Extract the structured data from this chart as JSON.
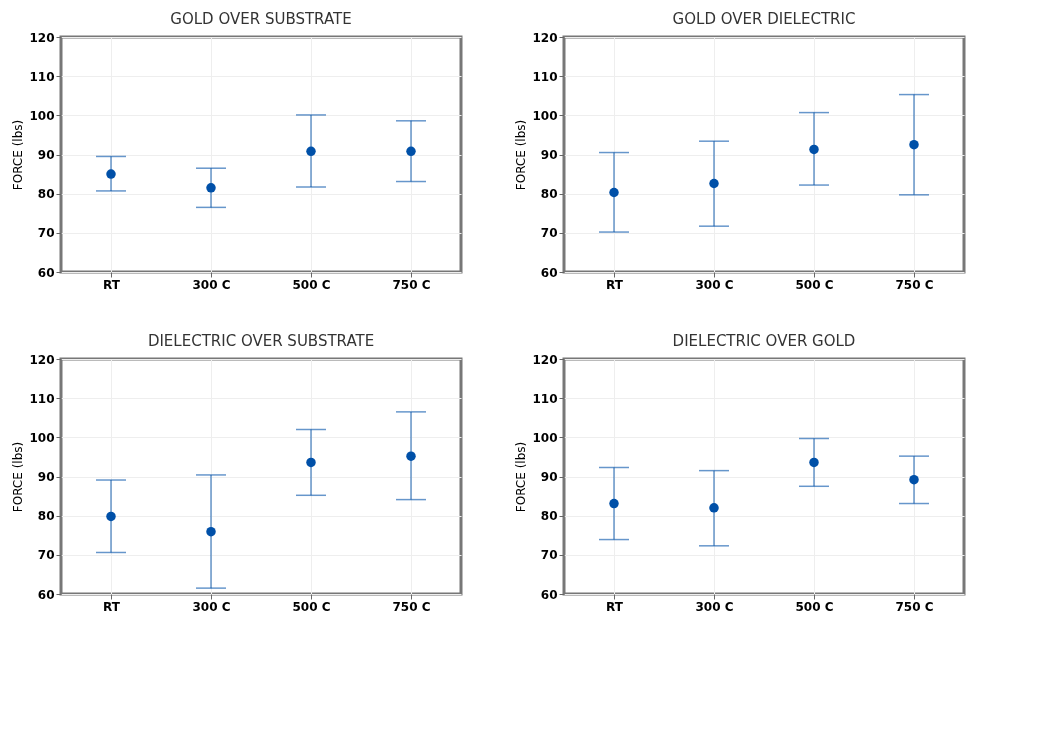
{
  "chart_data": [
    {
      "type": "scatter",
      "title": "GOLD OVER SUBSTRATE",
      "ylabel": "FORCE (lbs)",
      "categories": [
        "RT",
        "300 C",
        "500 C",
        "750 C"
      ],
      "series": [
        {
          "color": "#0050a8",
          "values": [
            85.0,
            81.5,
            90.8,
            90.8
          ],
          "errors": [
            [
              80.7,
              89.5
            ],
            [
              76.5,
              86.5
            ],
            [
              81.7,
              100.1
            ],
            [
              83.1,
              98.6
            ]
          ]
        }
      ],
      "ylim": [
        60,
        120
      ],
      "yticks": [
        60,
        70,
        80,
        90,
        100,
        110,
        120
      ],
      "grid": true,
      "marker": "circle"
    },
    {
      "type": "scatter",
      "title": "GOLD OVER DIELECTRIC",
      "ylabel": "FORCE (lbs)",
      "categories": [
        "RT",
        "300 C",
        "500 C",
        "750 C"
      ],
      "series": [
        {
          "color": "#0050a8",
          "values": [
            80.3,
            82.6,
            91.3,
            92.5
          ],
          "errors": [
            [
              70.2,
              90.5
            ],
            [
              71.7,
              93.4
            ],
            [
              82.2,
              100.7
            ],
            [
              79.7,
              105.3
            ]
          ]
        }
      ],
      "ylim": [
        60,
        120
      ],
      "yticks": [
        60,
        70,
        80,
        90,
        100,
        110,
        120
      ],
      "grid": true,
      "marker": "circle"
    },
    {
      "type": "scatter",
      "title": "DIELECTRIC OVER SUBSTRATE",
      "ylabel": "FORCE (lbs)",
      "categories": [
        "RT",
        "300 C",
        "500 C",
        "750 C"
      ],
      "series": [
        {
          "color": "#0050a8",
          "values": [
            79.8,
            75.9,
            93.6,
            95.2
          ],
          "errors": [
            [
              70.6,
              89.1
            ],
            [
              61.5,
              90.4
            ],
            [
              85.2,
              102.0
            ],
            [
              84.1,
              106.5
            ]
          ]
        }
      ],
      "ylim": [
        60,
        120
      ],
      "yticks": [
        60,
        70,
        80,
        90,
        100,
        110,
        120
      ],
      "grid": true,
      "marker": "circle"
    },
    {
      "type": "scatter",
      "title": "DIELECTRIC OVER GOLD",
      "ylabel": "FORCE (lbs)",
      "categories": [
        "RT",
        "300 C",
        "500 C",
        "750 C"
      ],
      "series": [
        {
          "color": "#0050a8",
          "values": [
            83.1,
            82.0,
            93.6,
            89.2
          ],
          "errors": [
            [
              73.9,
              92.3
            ],
            [
              72.3,
              91.5
            ],
            [
              87.5,
              99.7
            ],
            [
              83.1,
              95.2
            ]
          ]
        }
      ],
      "ylim": [
        60,
        120
      ],
      "yticks": [
        60,
        70,
        80,
        90,
        100,
        110,
        120
      ],
      "grid": true,
      "marker": "circle"
    }
  ]
}
